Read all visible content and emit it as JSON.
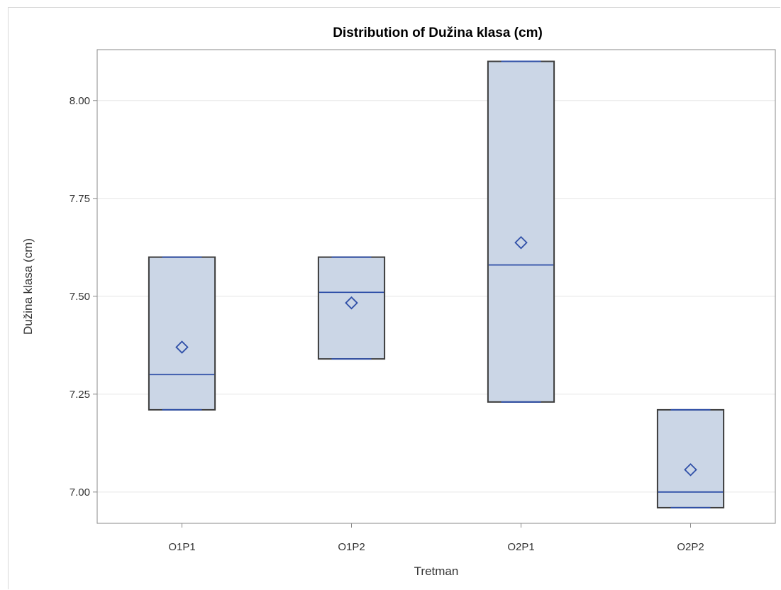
{
  "chart_data": {
    "type": "box",
    "title": "Distribution of Dužina klasa (cm)",
    "xlabel": "Tretman",
    "ylabel": "Dužina klasa (cm)",
    "ylim": [
      6.92,
      8.13
    ],
    "yticks": [
      7.0,
      7.25,
      7.5,
      7.75,
      8.0
    ],
    "ytick_labels": [
      "7.00",
      "7.25",
      "7.50",
      "7.75",
      "8.00"
    ],
    "grid": true,
    "categories": [
      "O1P1",
      "O1P2",
      "O2P1",
      "O2P2"
    ],
    "boxes": [
      {
        "category": "O1P1",
        "min": 7.21,
        "q1": 7.21,
        "median": 7.3,
        "q3": 7.6,
        "max": 7.6,
        "mean": 7.37
      },
      {
        "category": "O1P2",
        "min": 7.34,
        "q1": 7.34,
        "median": 7.51,
        "q3": 7.6,
        "max": 7.6,
        "mean": 7.483
      },
      {
        "category": "O2P1",
        "min": 7.23,
        "q1": 7.23,
        "median": 7.58,
        "q3": 8.1,
        "max": 8.1,
        "mean": 7.637
      },
      {
        "category": "O2P2",
        "min": 6.96,
        "q1": 6.96,
        "median": 7.0,
        "q3": 7.21,
        "max": 7.21,
        "mean": 7.057
      }
    ],
    "colors": {
      "box_fill": "#cbd6e6",
      "box_stroke": "#3c3c3c",
      "median": "#3050a8",
      "mean_marker": "#3050a8",
      "grid": "#e6e6e6",
      "axis": "#888888"
    }
  }
}
